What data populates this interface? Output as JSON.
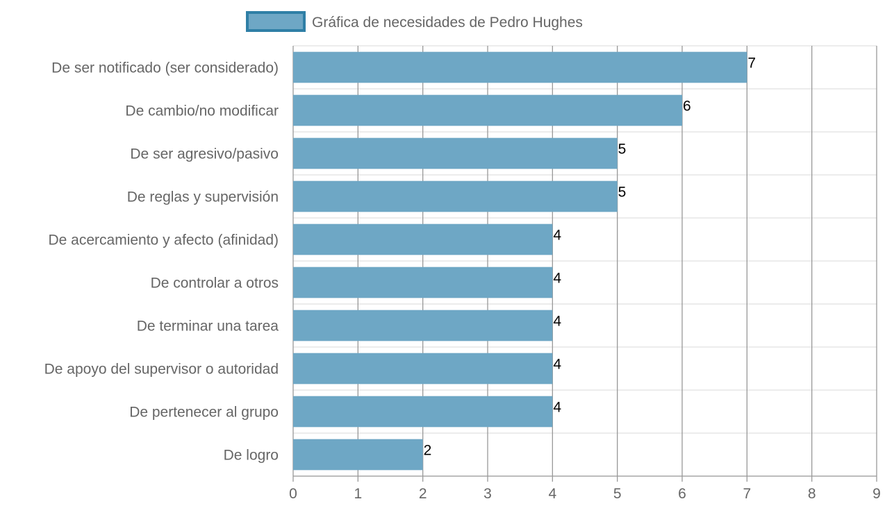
{
  "chart_data": {
    "type": "bar",
    "orientation": "horizontal",
    "legend": {
      "position": "top",
      "entries": [
        {
          "name": "Gráfica de necesidades de Pedro Hughes",
          "fill": "#6ea7c5",
          "border": "#2f7fa6"
        }
      ]
    },
    "categories": [
      "De ser notificado (ser considerado)",
      "De cambio/no modificar",
      "De ser agresivo/pasivo",
      "De reglas y supervisión",
      "De acercamiento y afecto (afinidad)",
      "De controlar a otros",
      "De terminar una tarea",
      "De apoyo del supervisor o autoridad",
      "De pertenecer al grupo",
      "De logro"
    ],
    "series": [
      {
        "name": "Gráfica de necesidades de Pedro Hughes",
        "values": [
          7,
          6,
          5,
          5,
          4,
          4,
          4,
          4,
          4,
          2
        ]
      }
    ],
    "xlim": [
      0,
      9
    ],
    "xticks": [
      "0",
      "1",
      "2",
      "3",
      "4",
      "5",
      "6",
      "7",
      "8",
      "9"
    ],
    "grid": true,
    "data_labels": true,
    "colors": {
      "bar": "#6ea7c5",
      "gridline_vertical": "#999999",
      "gridline_horizontal": "#e0e0e0",
      "text": "#666666"
    }
  }
}
